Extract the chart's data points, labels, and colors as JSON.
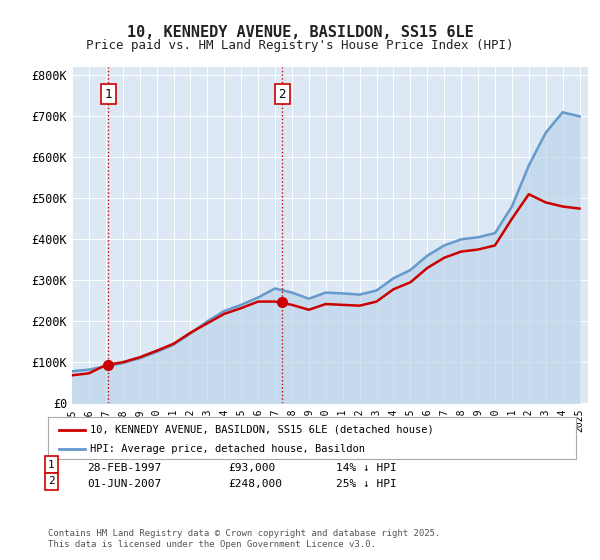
{
  "title": "10, KENNEDY AVENUE, BASILDON, SS15 6LE",
  "subtitle": "Price paid vs. HM Land Registry's House Price Index (HPI)",
  "ylabel": "",
  "background_color": "#ffffff",
  "plot_bg_color": "#dce9f5",
  "legend_label_red": "10, KENNEDY AVENUE, BASILDON, SS15 6LE (detached house)",
  "legend_label_blue": "HPI: Average price, detached house, Basildon",
  "annotation1_label": "1",
  "annotation1_date": "28-FEB-1997",
  "annotation1_price": "£93,000",
  "annotation1_hpi": "14% ↓ HPI",
  "annotation2_label": "2",
  "annotation2_date": "01-JUN-2007",
  "annotation2_price": "£248,000",
  "annotation2_hpi": "25% ↓ HPI",
  "footnote": "Contains HM Land Registry data © Crown copyright and database right 2025.\nThis data is licensed under the Open Government Licence v3.0.",
  "red_color": "#cc0000",
  "blue_color": "#6699cc",
  "marker_color": "#cc0000",
  "yticks": [
    0,
    100000,
    200000,
    300000,
    400000,
    500000,
    600000,
    700000,
    800000
  ],
  "ytick_labels": [
    "£0",
    "£100K",
    "£200K",
    "£300K",
    "£400K",
    "£500K",
    "£600K",
    "£700K",
    "£800K"
  ],
  "hpi_years": [
    1995,
    1996,
    1997,
    1998,
    1999,
    2000,
    2001,
    2002,
    2003,
    2004,
    2005,
    2006,
    2007,
    2008,
    2009,
    2010,
    2011,
    2012,
    2013,
    2014,
    2015,
    2016,
    2017,
    2018,
    2019,
    2020,
    2021,
    2022,
    2023,
    2024,
    2025
  ],
  "hpi_values": [
    78000,
    82000,
    90000,
    98000,
    110000,
    125000,
    143000,
    170000,
    200000,
    225000,
    240000,
    258000,
    280000,
    270000,
    255000,
    270000,
    268000,
    265000,
    275000,
    305000,
    325000,
    360000,
    385000,
    400000,
    405000,
    415000,
    480000,
    580000,
    660000,
    710000,
    700000
  ],
  "red_years": [
    1995,
    1996,
    1997,
    1998,
    1999,
    2000,
    2001,
    2002,
    2003,
    2004,
    2005,
    2006,
    2007,
    2008,
    2009,
    2010,
    2011,
    2012,
    2013,
    2014,
    2015,
    2016,
    2017,
    2018,
    2019,
    2020,
    2021,
    2022,
    2023,
    2024,
    2025
  ],
  "red_values": [
    68000,
    73000,
    93000,
    100000,
    112000,
    128000,
    145000,
    172000,
    195000,
    218000,
    232000,
    248000,
    248000,
    240000,
    228000,
    242000,
    240000,
    238000,
    248000,
    278000,
    295000,
    330000,
    355000,
    370000,
    375000,
    385000,
    450000,
    510000,
    490000,
    480000,
    475000
  ],
  "point1_x": 1997.15,
  "point1_y": 93000,
  "point2_x": 2007.42,
  "point2_y": 248000,
  "xmin": 1995,
  "xmax": 2025.5,
  "ymin": 0,
  "ymax": 820000
}
